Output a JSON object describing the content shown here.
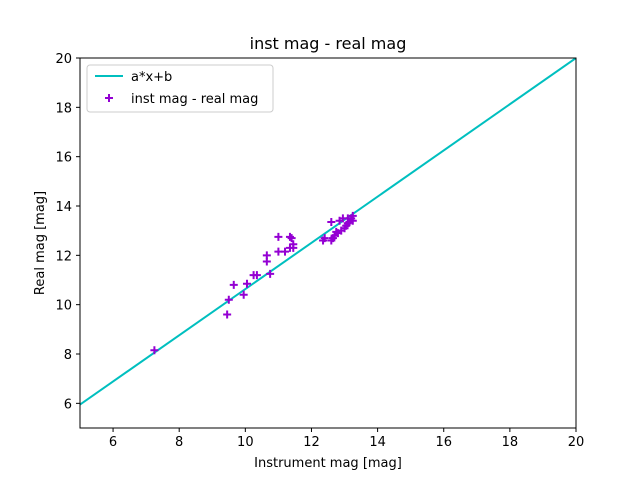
{
  "chart_data": {
    "type": "scatter",
    "title": "inst mag - real mag",
    "xlabel": "Instrument mag [mag]",
    "ylabel": "Real mag [mag]",
    "xlim": [
      5,
      20
    ],
    "ylim": [
      5,
      20
    ],
    "xticks": [
      6,
      8,
      10,
      12,
      14,
      16,
      18,
      20
    ],
    "yticks": [
      6,
      8,
      10,
      12,
      14,
      16,
      18,
      20
    ],
    "grid": false,
    "legend_position": "top-left",
    "series": [
      {
        "name": "a*x+b",
        "kind": "line",
        "color": "#00bfbf",
        "x": [
          5,
          20
        ],
        "y": [
          5.95,
          20.0
        ]
      },
      {
        "name": "inst mag - real mag",
        "kind": "scatter",
        "marker": "+",
        "color": "#9400d3",
        "x": [
          7.25,
          9.45,
          9.5,
          9.65,
          9.95,
          10.05,
          10.25,
          10.35,
          10.65,
          10.65,
          10.75,
          11.0,
          11.0,
          11.2,
          11.35,
          11.35,
          11.4,
          11.45,
          11.45,
          12.35,
          12.4,
          12.6,
          12.6,
          12.65,
          12.7,
          12.75,
          12.8,
          12.85,
          12.9,
          12.95,
          13.0,
          13.05,
          13.1,
          13.1,
          13.15,
          13.2,
          13.25,
          13.25
        ],
        "y": [
          8.15,
          9.6,
          10.2,
          10.8,
          10.4,
          10.85,
          11.2,
          11.2,
          11.75,
          12.0,
          11.25,
          12.15,
          12.75,
          12.15,
          12.3,
          12.75,
          12.7,
          12.45,
          12.3,
          12.6,
          12.7,
          12.6,
          13.35,
          12.7,
          12.8,
          12.95,
          12.9,
          13.4,
          13.0,
          13.5,
          13.1,
          13.2,
          13.3,
          13.5,
          13.35,
          13.5,
          13.4,
          13.6
        ]
      }
    ]
  }
}
